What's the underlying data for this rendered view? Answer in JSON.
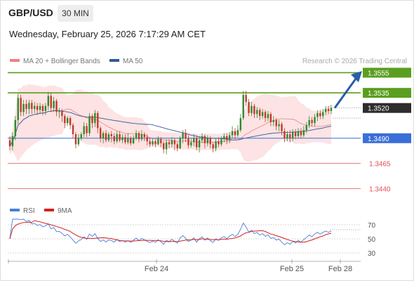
{
  "header": {
    "symbol": "GBP/USD",
    "timeframe": "30 MIN",
    "datetime": "Wednesday, February 25, 2026 7:17:29 AM CET"
  },
  "legend": {
    "items": [
      {
        "label": "MA 20 + Bollinger Bands",
        "color": "#f08080"
      },
      {
        "label": "MA 50",
        "color": "#2e5a9c"
      }
    ],
    "copyright": "Research © 2026 Trading Central"
  },
  "chart_data": [
    {
      "type": "candlestick",
      "ylim": [
        1.3432,
        1.3563
      ],
      "x_tick_labels": [
        "Feb 24",
        "Feb 25",
        "Feb 28"
      ],
      "levels": [
        {
          "value": "1.3555",
          "price": 1.3555,
          "kind": "resistance",
          "color": "#5a9e1f"
        },
        {
          "value": "1.3535",
          "price": 1.3535,
          "kind": "resistance",
          "color": "#5a9e1f"
        },
        {
          "value": "1.3520",
          "price": 1.352,
          "kind": "current",
          "color": "#333333"
        },
        {
          "value": "1.3490",
          "price": 1.349,
          "kind": "pivot",
          "color": "#3a6fd8"
        },
        {
          "value": "1.3465",
          "price": 1.3465,
          "kind": "support",
          "color": "#e05050"
        },
        {
          "value": "1.3440",
          "price": 1.344,
          "kind": "support",
          "color": "#e05050"
        }
      ],
      "colors": {
        "up": "#2e8b2e",
        "down": "#c0392b",
        "band_fill": "#fde3e3",
        "ma20": "#f08080",
        "ma50": "#2e5a9c",
        "arrow": "#2a5ca8"
      },
      "candles": [
        [
          1.3488,
          1.3482,
          1.3492,
          1.3478
        ],
        [
          1.3482,
          1.3492,
          1.3496,
          1.3478
        ],
        [
          1.3492,
          1.3508,
          1.3512,
          1.3488
        ],
        [
          1.3508,
          1.353,
          1.3534,
          1.3504
        ],
        [
          1.353,
          1.3516,
          1.3533,
          1.3512
        ],
        [
          1.3516,
          1.3524,
          1.3528,
          1.3512
        ],
        [
          1.3524,
          1.3519,
          1.3528,
          1.3514
        ],
        [
          1.3519,
          1.3525,
          1.3528,
          1.3514
        ],
        [
          1.3525,
          1.3519,
          1.3528,
          1.3514
        ],
        [
          1.3519,
          1.3522,
          1.3526,
          1.3515
        ],
        [
          1.3522,
          1.3518,
          1.3525,
          1.3513
        ],
        [
          1.3518,
          1.3522,
          1.3525,
          1.3514
        ],
        [
          1.3522,
          1.3517,
          1.3524,
          1.3513
        ],
        [
          1.3517,
          1.3522,
          1.3525,
          1.3513
        ],
        [
          1.3522,
          1.3532,
          1.3536,
          1.3518
        ],
        [
          1.3532,
          1.352,
          1.3535,
          1.3516
        ],
        [
          1.352,
          1.3527,
          1.3531,
          1.3516
        ],
        [
          1.3527,
          1.3516,
          1.3529,
          1.3512
        ],
        [
          1.3516,
          1.3517,
          1.352,
          1.351
        ],
        [
          1.3517,
          1.3512,
          1.3519,
          1.3506
        ],
        [
          1.3512,
          1.3505,
          1.3514,
          1.35
        ],
        [
          1.3505,
          1.351,
          1.3512,
          1.3502
        ],
        [
          1.351,
          1.3503,
          1.3512,
          1.3499
        ],
        [
          1.3503,
          1.3494,
          1.3505,
          1.349
        ],
        [
          1.3494,
          1.3484,
          1.3496,
          1.348
        ],
        [
          1.3484,
          1.349,
          1.3494,
          1.3482
        ],
        [
          1.349,
          1.3494,
          1.3496,
          1.3488
        ],
        [
          1.3494,
          1.3502,
          1.3506,
          1.3491
        ],
        [
          1.3502,
          1.3495,
          1.3505,
          1.3491
        ],
        [
          1.3495,
          1.3512,
          1.3515,
          1.3492
        ],
        [
          1.3512,
          1.3505,
          1.3514,
          1.35
        ],
        [
          1.3505,
          1.3515,
          1.3518,
          1.3501
        ],
        [
          1.3515,
          1.35,
          1.3517,
          1.3495
        ],
        [
          1.35,
          1.349,
          1.3502,
          1.3486
        ],
        [
          1.349,
          1.3495,
          1.3497,
          1.3485
        ],
        [
          1.3495,
          1.3488,
          1.3498,
          1.3486
        ],
        [
          1.3488,
          1.3494,
          1.3496,
          1.3486
        ],
        [
          1.3494,
          1.3492,
          1.3497,
          1.3486
        ],
        [
          1.3492,
          1.3487,
          1.3495,
          1.3484
        ],
        [
          1.3487,
          1.3494,
          1.3497,
          1.3485
        ],
        [
          1.3494,
          1.3488,
          1.3497,
          1.3486
        ],
        [
          1.3488,
          1.3491,
          1.3494,
          1.3485
        ],
        [
          1.3491,
          1.3486,
          1.3494,
          1.3484
        ],
        [
          1.3486,
          1.349,
          1.3495,
          1.3484
        ],
        [
          1.349,
          1.3485,
          1.3492,
          1.3483
        ],
        [
          1.3485,
          1.349,
          1.3493,
          1.3484
        ],
        [
          1.349,
          1.3495,
          1.3498,
          1.3488
        ],
        [
          1.3495,
          1.3489,
          1.3497,
          1.3486
        ],
        [
          1.3489,
          1.3494,
          1.3498,
          1.3487
        ],
        [
          1.3494,
          1.3491,
          1.3496,
          1.3487
        ],
        [
          1.3491,
          1.3487,
          1.3494,
          1.3483
        ],
        [
          1.3487,
          1.3484,
          1.349,
          1.3481
        ],
        [
          1.3484,
          1.3487,
          1.349,
          1.3482
        ],
        [
          1.3487,
          1.3484,
          1.3489,
          1.3481
        ],
        [
          1.3484,
          1.3489,
          1.3492,
          1.3483
        ],
        [
          1.3489,
          1.3485,
          1.3491,
          1.3481
        ],
        [
          1.3485,
          1.3479,
          1.3487,
          1.3475
        ],
        [
          1.3479,
          1.3486,
          1.3489,
          1.3474
        ],
        [
          1.3486,
          1.3484,
          1.3489,
          1.348
        ],
        [
          1.3484,
          1.3488,
          1.3491,
          1.3481
        ],
        [
          1.3488,
          1.3484,
          1.349,
          1.3478
        ],
        [
          1.3484,
          1.348,
          1.3486,
          1.3477
        ],
        [
          1.348,
          1.349,
          1.3492,
          1.3479
        ],
        [
          1.349,
          1.3495,
          1.3498,
          1.3485
        ],
        [
          1.3495,
          1.349,
          1.3499,
          1.3486
        ],
        [
          1.349,
          1.3483,
          1.3493,
          1.348
        ],
        [
          1.3483,
          1.3486,
          1.349,
          1.3481
        ],
        [
          1.3486,
          1.349,
          1.3494,
          1.3482
        ],
        [
          1.349,
          1.3481,
          1.3493,
          1.3478
        ],
        [
          1.3481,
          1.3488,
          1.3492,
          1.3476
        ],
        [
          1.3488,
          1.3492,
          1.3495,
          1.3485
        ],
        [
          1.3492,
          1.3485,
          1.3494,
          1.348
        ],
        [
          1.3485,
          1.349,
          1.3493,
          1.3482
        ],
        [
          1.349,
          1.3484,
          1.3492,
          1.348
        ],
        [
          1.3484,
          1.348,
          1.3486,
          1.3476
        ],
        [
          1.348,
          1.3487,
          1.349,
          1.3477
        ],
        [
          1.3487,
          1.3484,
          1.3491,
          1.3481
        ],
        [
          1.3484,
          1.3489,
          1.3492,
          1.3482
        ],
        [
          1.3489,
          1.3492,
          1.3495,
          1.3486
        ],
        [
          1.3492,
          1.3488,
          1.3495,
          1.3484
        ],
        [
          1.3488,
          1.3493,
          1.3496,
          1.3485
        ],
        [
          1.3493,
          1.3497,
          1.3502,
          1.349
        ],
        [
          1.3497,
          1.3493,
          1.35,
          1.3489
        ],
        [
          1.3493,
          1.3498,
          1.3503,
          1.3491
        ],
        [
          1.3498,
          1.351,
          1.3514,
          1.3496
        ],
        [
          1.351,
          1.3533,
          1.3537,
          1.3508
        ],
        [
          1.3533,
          1.3526,
          1.3537,
          1.3522
        ],
        [
          1.3526,
          1.3515,
          1.3529,
          1.3512
        ],
        [
          1.3515,
          1.3522,
          1.3526,
          1.3512
        ],
        [
          1.3522,
          1.3514,
          1.3524,
          1.351
        ],
        [
          1.3514,
          1.3518,
          1.3521,
          1.351
        ],
        [
          1.3518,
          1.3512,
          1.352,
          1.3508
        ],
        [
          1.3512,
          1.3516,
          1.3519,
          1.3509
        ],
        [
          1.3516,
          1.351,
          1.3518,
          1.3506
        ],
        [
          1.351,
          1.3514,
          1.3517,
          1.3507
        ],
        [
          1.3514,
          1.3506,
          1.3516,
          1.3502
        ],
        [
          1.3506,
          1.3508,
          1.3512,
          1.3502
        ],
        [
          1.3508,
          1.3502,
          1.351,
          1.3498
        ],
        [
          1.3502,
          1.3504,
          1.3508,
          1.3497
        ],
        [
          1.3504,
          1.3497,
          1.3506,
          1.3493
        ],
        [
          1.3497,
          1.349,
          1.35,
          1.3486
        ],
        [
          1.349,
          1.3494,
          1.3497,
          1.3487
        ],
        [
          1.3494,
          1.349,
          1.3498,
          1.3486
        ],
        [
          1.349,
          1.3496,
          1.3499,
          1.3487
        ],
        [
          1.3496,
          1.3492,
          1.3499,
          1.3489
        ],
        [
          1.3492,
          1.3497,
          1.35,
          1.349
        ],
        [
          1.3497,
          1.3493,
          1.35,
          1.349
        ],
        [
          1.3493,
          1.3498,
          1.3502,
          1.3491
        ],
        [
          1.3498,
          1.3503,
          1.3506,
          1.3495
        ],
        [
          1.3503,
          1.3508,
          1.3512,
          1.35
        ],
        [
          1.3508,
          1.3505,
          1.3511,
          1.3502
        ],
        [
          1.3505,
          1.3511,
          1.3514,
          1.3502
        ],
        [
          1.3511,
          1.3515,
          1.3518,
          1.3507
        ],
        [
          1.3515,
          1.3512,
          1.3518,
          1.3509
        ],
        [
          1.3512,
          1.3516,
          1.3519,
          1.3509
        ],
        [
          1.3516,
          1.3519,
          1.3522,
          1.3513
        ],
        [
          1.3519,
          1.3517,
          1.3522,
          1.3514
        ],
        [
          1.3517,
          1.352,
          1.3523,
          1.3514
        ]
      ]
    },
    {
      "type": "line",
      "series": [
        {
          "name": "RSI",
          "color": "#4a7fd4"
        },
        {
          "name": "9MA",
          "color": "#d62020"
        }
      ],
      "ylim": [
        20,
        85
      ],
      "y_ticks": [
        "70",
        "50",
        "30"
      ],
      "reference_level": 63
    }
  ]
}
